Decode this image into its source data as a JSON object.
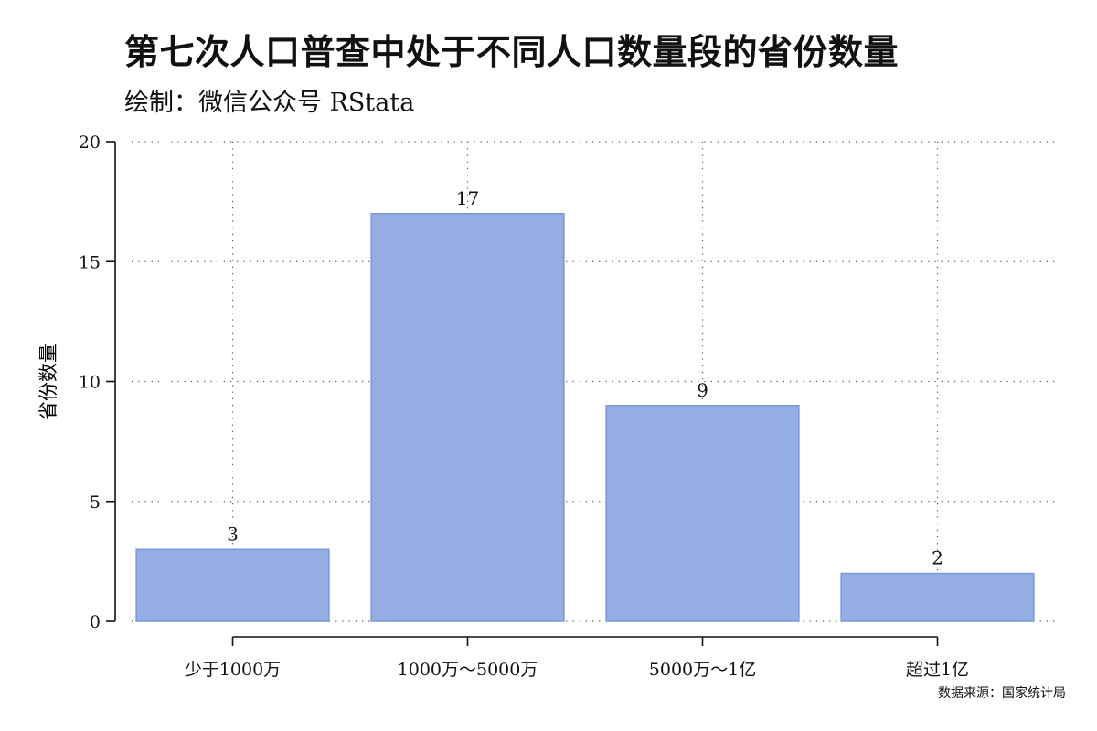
{
  "header": {
    "title": "第七次人口普查中处于不同人口数量段的省份数量",
    "subtitle": "绘制：微信公众号 RStata"
  },
  "footer": {
    "source": "数据来源：国家统计局"
  },
  "colors": {
    "bar_fill": "#94aee4",
    "bar_stroke": "#7a98d6",
    "grid": "#555555",
    "axis": "#111111"
  },
  "chart_data": {
    "type": "bar",
    "title": "第七次人口普查中处于不同人口数量段的省份数量",
    "subtitle": "绘制：微信公众号 RStata",
    "xlabel": "",
    "ylabel": "省份数量",
    "categories": [
      "少于1000万",
      "1000万～5000万",
      "5000万～1亿",
      "超过1亿"
    ],
    "values": [
      3,
      17,
      9,
      2
    ],
    "data_labels": [
      "3",
      "17",
      "9",
      "2"
    ],
    "ylim": [
      0,
      20
    ],
    "yticks": [
      0,
      5,
      10,
      15,
      20
    ],
    "ytick_labels": [
      "0",
      "5",
      "10",
      "15",
      "20"
    ],
    "grid": true,
    "legend": "none",
    "caption": "数据来源：国家统计局"
  }
}
